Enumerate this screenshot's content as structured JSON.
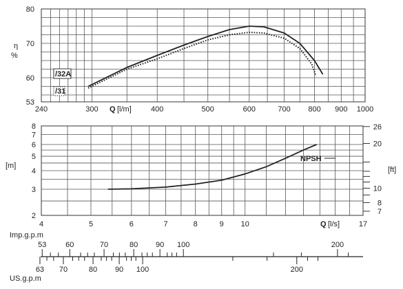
{
  "chart_data": [
    {
      "type": "line",
      "id": "efficiency",
      "ylabel": "η",
      "yunit": "%",
      "xlabel": "Q",
      "xunit": "[l/m]",
      "x_scale": "log",
      "xlim": [
        240,
        1000
      ],
      "ylim": [
        53,
        80
      ],
      "x_ticks": [
        240,
        300,
        400,
        500,
        600,
        700,
        800,
        900,
        1000
      ],
      "x_gridlines": [
        250,
        260,
        270,
        280,
        290,
        300,
        350,
        400,
        450,
        500,
        550,
        600,
        650,
        700,
        750,
        800,
        850,
        900,
        950,
        1000
      ],
      "y_ticks": [
        53,
        60,
        70,
        80
      ],
      "y_gridlines": [
        55,
        57.5,
        60,
        62.5,
        65,
        67.5,
        70,
        72.5,
        75,
        77.5
      ],
      "grid": true,
      "legend": [
        {
          "name": "/32A",
          "style": "solid"
        },
        {
          "name": "/31",
          "style": "dotted"
        }
      ],
      "series": [
        {
          "name": "/32A",
          "style": "solid",
          "points": [
            [
              295,
              57.5
            ],
            [
              350,
              63
            ],
            [
              400,
              66.5
            ],
            [
              450,
              69.5
            ],
            [
              500,
              72
            ],
            [
              550,
              74
            ],
            [
              600,
              75
            ],
            [
              640,
              74.8
            ],
            [
              700,
              73
            ],
            [
              750,
              70
            ],
            [
              800,
              65
            ],
            [
              830,
              61
            ]
          ]
        },
        {
          "name": "/31",
          "style": "dotted",
          "points": [
            [
              295,
              57
            ],
            [
              350,
              62.5
            ],
            [
              400,
              65.5
            ],
            [
              450,
              68.5
            ],
            [
              500,
              71
            ],
            [
              550,
              72.5
            ],
            [
              600,
              73.2
            ],
            [
              640,
              73
            ],
            [
              700,
              71.5
            ],
            [
              750,
              68.5
            ],
            [
              790,
              64
            ],
            [
              805,
              60.5
            ]
          ]
        }
      ]
    },
    {
      "type": "line",
      "id": "npsh",
      "ylabel": "[m]",
      "ylabel_right": "[ft]",
      "xlabel": "Q",
      "xunit": "[l/s]",
      "x_scale": "log",
      "y_scale": "log",
      "xlim": [
        4,
        17
      ],
      "ylim": [
        2,
        8
      ],
      "x_ticks": [
        4,
        5,
        6,
        7,
        8,
        9,
        10,
        17
      ],
      "x_gridlines": [
        4,
        4.5,
        5,
        5.5,
        6,
        6.5,
        7,
        7.5,
        8,
        8.5,
        9,
        9.5,
        10,
        11,
        12,
        13,
        14,
        15,
        16,
        17
      ],
      "y_ticks": [
        2,
        3,
        4,
        5,
        6,
        7,
        8
      ],
      "y_gridlines": [
        2,
        2.5,
        3,
        3.5,
        4,
        4.5,
        5,
        5.5,
        6,
        7,
        8
      ],
      "y_ticks_right_ft": [
        7,
        8,
        10,
        20,
        26
      ],
      "y_minor_right_ft": [
        9,
        11,
        12,
        13,
        15
      ],
      "grid": true,
      "series": [
        {
          "name": "NPSH",
          "style": "solid",
          "points": [
            [
              5.4,
              3.0
            ],
            [
              6,
              3.02
            ],
            [
              7,
              3.1
            ],
            [
              8,
              3.25
            ],
            [
              9,
              3.45
            ],
            [
              10,
              3.8
            ],
            [
              11,
              4.25
            ],
            [
              12,
              4.85
            ],
            [
              13,
              5.5
            ],
            [
              13.8,
              6.0
            ]
          ]
        }
      ]
    }
  ],
  "bottom_scales": {
    "imp_label": "Imp.g.p.m",
    "us_label": "US.g.p.m",
    "imp_ticks": [
      53,
      60,
      70,
      80,
      90,
      100,
      200
    ],
    "us_ticks": [
      63,
      70,
      80,
      90,
      100,
      200
    ],
    "imp_minor": [
      55,
      57,
      63,
      65,
      67,
      73,
      75,
      77,
      83,
      85,
      87,
      93,
      95,
      97,
      150,
      170,
      210
    ],
    "us_minor": [
      65,
      67,
      73,
      75,
      77,
      83,
      85,
      87,
      93,
      95,
      97,
      150,
      175,
      210,
      220
    ]
  }
}
